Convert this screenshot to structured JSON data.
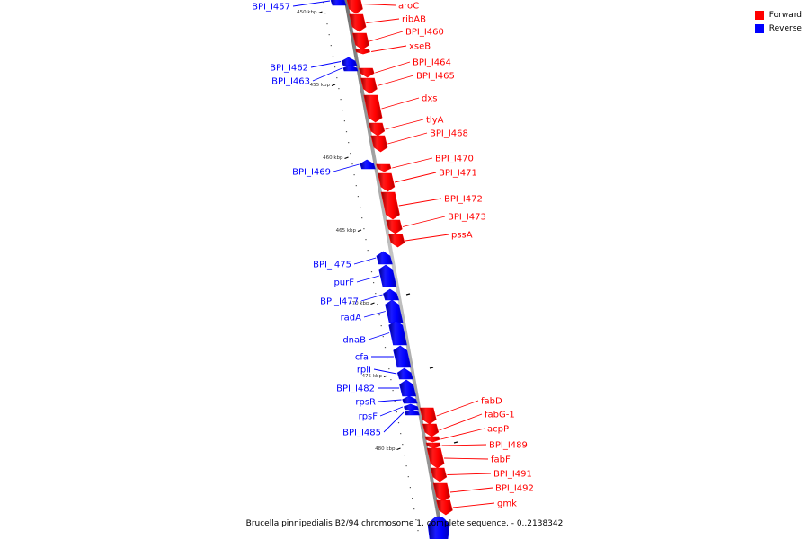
{
  "legend": {
    "items": [
      {
        "label": "Forward",
        "color": "#ff0000"
      },
      {
        "label": "Reverse",
        "color": "#0000ff"
      }
    ]
  },
  "caption": "Brucella pinnipedialis B2/94 chromosome 1, complete sequence. - 0..2138342",
  "colors": {
    "forward": "#ff0000",
    "reverse": "#0000ff",
    "backbone": "#9a9a9a"
  },
  "scale_labels": [
    "450 kbp",
    "455 kbp",
    "460 kbp",
    "465 kbp",
    "470 kbp",
    "475 kbp",
    "480 kbp"
  ],
  "genes": [
    {
      "name": "BPI_I457",
      "strand": "reverse"
    },
    {
      "name": "aroC",
      "strand": "forward"
    },
    {
      "name": "ribAB",
      "strand": "forward"
    },
    {
      "name": "BPI_I460",
      "strand": "forward"
    },
    {
      "name": "xseB",
      "strand": "forward"
    },
    {
      "name": "BPI_I462",
      "strand": "reverse"
    },
    {
      "name": "BPI_I463",
      "strand": "reverse"
    },
    {
      "name": "BPI_I464",
      "strand": "forward"
    },
    {
      "name": "BPI_I465",
      "strand": "forward"
    },
    {
      "name": "dxs",
      "strand": "forward"
    },
    {
      "name": "tlyA",
      "strand": "forward"
    },
    {
      "name": "BPI_I468",
      "strand": "forward"
    },
    {
      "name": "BPI_I469",
      "strand": "reverse"
    },
    {
      "name": "BPI_I470",
      "strand": "forward"
    },
    {
      "name": "BPI_I471",
      "strand": "forward"
    },
    {
      "name": "BPI_I472",
      "strand": "forward"
    },
    {
      "name": "BPI_I473",
      "strand": "forward"
    },
    {
      "name": "pssA",
      "strand": "forward"
    },
    {
      "name": "BPI_I475",
      "strand": "reverse"
    },
    {
      "name": "purF",
      "strand": "reverse"
    },
    {
      "name": "BPI_I477",
      "strand": "reverse"
    },
    {
      "name": "radA",
      "strand": "reverse"
    },
    {
      "name": "dnaB",
      "strand": "reverse"
    },
    {
      "name": "cfa",
      "strand": "reverse"
    },
    {
      "name": "rplI",
      "strand": "reverse"
    },
    {
      "name": "BPI_I482",
      "strand": "reverse"
    },
    {
      "name": "rpsR",
      "strand": "reverse"
    },
    {
      "name": "rpsF",
      "strand": "reverse"
    },
    {
      "name": "BPI_I485",
      "strand": "reverse"
    },
    {
      "name": "fabD",
      "strand": "forward"
    },
    {
      "name": "fabG-1",
      "strand": "forward"
    },
    {
      "name": "acpP",
      "strand": "forward"
    },
    {
      "name": "BPI_I489",
      "strand": "forward"
    },
    {
      "name": "fabF",
      "strand": "forward"
    },
    {
      "name": "BPI_I491",
      "strand": "forward"
    },
    {
      "name": "BPI_I492",
      "strand": "forward"
    },
    {
      "name": "gmk",
      "strand": "forward"
    }
  ]
}
